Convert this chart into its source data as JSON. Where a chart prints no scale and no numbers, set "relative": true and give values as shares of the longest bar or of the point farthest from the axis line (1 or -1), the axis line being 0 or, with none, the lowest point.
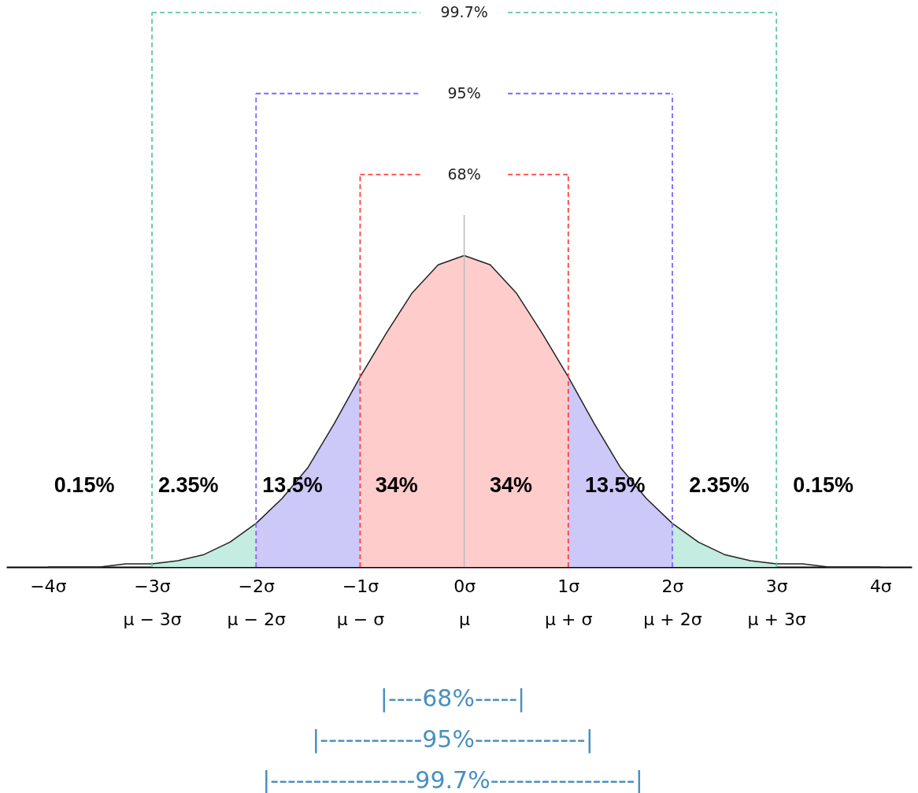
{
  "chart_data": {
    "type": "area",
    "relative": true,
    "xlim": [
      -4.4,
      4.3
    ],
    "xticks": [
      {
        "value": -4,
        "label": "−4σ"
      },
      {
        "value": -3,
        "label": "−3σ\nμ − 3σ"
      },
      {
        "value": -2,
        "label": "−2σ\nμ − 2σ"
      },
      {
        "value": -1,
        "label": "−1σ\nμ − σ"
      },
      {
        "value": 0,
        "label": "0σ\nμ"
      },
      {
        "value": 1,
        "label": "1σ\nμ + σ"
      },
      {
        "value": 2,
        "label": "2σ\nμ + 2σ"
      },
      {
        "value": 3,
        "label": "3σ\nμ + 3σ"
      },
      {
        "value": 4,
        "label": "4σ"
      }
    ],
    "series": [
      {
        "color": "#c4ece0",
        "x": [
          -3,
          -2.75,
          -2.5,
          -2.25,
          -2
        ],
        "values": [
          0.01,
          0.02,
          0.04,
          0.08,
          0.14
        ]
      },
      {
        "color": "#ccc8f8",
        "x": [
          -2,
          -1.75,
          -1.5,
          -1.25,
          -1
        ],
        "values": [
          0.14,
          0.22,
          0.32,
          0.46,
          0.61
        ]
      },
      {
        "color": "#ffcccc",
        "x": [
          -1,
          -0.75,
          -0.5,
          -0.25,
          0,
          0.25,
          0.5,
          0.75,
          1
        ],
        "values": [
          0.61,
          0.75,
          0.88,
          0.97,
          1,
          0.97,
          0.88,
          0.75,
          0.61
        ]
      },
      {
        "color": "#ccc8f8",
        "x": [
          1,
          1.25,
          1.5,
          1.75,
          2
        ],
        "values": [
          0.61,
          0.46,
          0.32,
          0.22,
          0.14
        ]
      },
      {
        "color": "#c4ece0",
        "x": [
          2,
          2.25,
          2.5,
          2.75,
          3
        ],
        "values": [
          0.14,
          0.08,
          0.04,
          0.02,
          0.01
        ]
      },
      {
        "type": "line",
        "color": "#222222",
        "x": [
          -4,
          -3.75,
          -3.5,
          -3.25,
          -3,
          -2.75,
          -2.5,
          -2.25,
          -2,
          -1.75,
          -1.5,
          -1.25,
          -1,
          -0.75,
          -0.5,
          -0.25,
          0,
          0.25,
          0.5,
          0.75,
          1,
          1.25,
          1.5,
          1.75,
          2,
          2.25,
          2.5,
          2.75,
          3,
          3.25,
          3.5,
          3.75,
          4
        ],
        "values": [
          0,
          0,
          0,
          0.01,
          0.01,
          0.02,
          0.04,
          0.08,
          0.14,
          0.22,
          0.32,
          0.46,
          0.61,
          0.75,
          0.88,
          0.97,
          1,
          0.97,
          0.88,
          0.75,
          0.61,
          0.46,
          0.32,
          0.22,
          0.14,
          0.08,
          0.04,
          0.02,
          0.01,
          0.01,
          0,
          0,
          0
        ]
      }
    ],
    "ref_lines": [
      {
        "axis": "x",
        "value": 0,
        "color": "#bbbbbb"
      },
      {
        "axis": "x",
        "value": -1,
        "color": "#ff4040",
        "line_style": "dashed"
      },
      {
        "axis": "x",
        "value": 1,
        "color": "#ff4040",
        "line_style": "dashed"
      },
      {
        "axis": "x",
        "value": -2,
        "color": "#8066ff",
        "line_style": "dashed"
      },
      {
        "axis": "x",
        "value": 2,
        "color": "#8066ff",
        "line_style": "dashed"
      },
      {
        "axis": "x",
        "value": -3,
        "color": "#5fc8a0",
        "line_style": "dashed"
      },
      {
        "axis": "x",
        "value": 3,
        "color": "#5fc8a0",
        "line_style": "dashed"
      }
    ],
    "annotations": [
      "68%",
      "95%",
      "99.7%",
      "0.15%",
      "2.35%",
      "13.5%",
      "34%",
      "34%",
      "13.5%",
      "2.35%",
      "0.15%",
      "|----68%-----|",
      "|------------95%-------------|",
      "|-----------------99.7%-----------------|"
    ],
    "grid": false
  }
}
